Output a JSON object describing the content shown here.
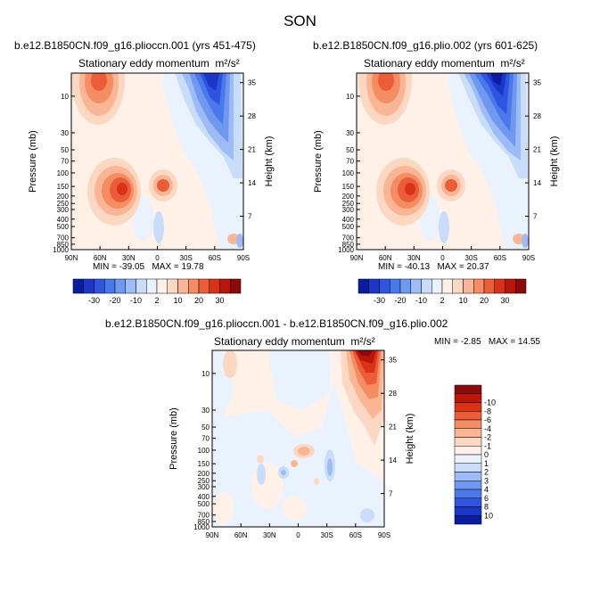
{
  "figure": {
    "season": "SON"
  },
  "colorbar_shared": {
    "colors": [
      "#0a1da0",
      "#1a37c8",
      "#2f55e0",
      "#4b78ea",
      "#6f98f0",
      "#9dbcf5",
      "#c9ddfa",
      "#eaf2fd",
      "#fff1e8",
      "#fcd8c3",
      "#fab694",
      "#f48d62",
      "#ea5d38",
      "#d83317",
      "#bb1609",
      "#8c0a0a"
    ],
    "labels": [
      "-30",
      "-20",
      "-10",
      "2",
      "10",
      "20",
      "30"
    ]
  },
  "colorbar_diff": {
    "colors": [
      "#0a1da0",
      "#1a37c8",
      "#2f55e0",
      "#4b78ea",
      "#6f98f0",
      "#9dbcf5",
      "#c9ddfa",
      "#eaf2fd",
      "#fff1e8",
      "#fcd8c3",
      "#fab694",
      "#f48d62",
      "#ea5d38",
      "#d83317",
      "#bb1609",
      "#8c0a0a"
    ],
    "labels": [
      "-10",
      "-8",
      "-6",
      "-4",
      "-2",
      "-1",
      "0",
      "1",
      "2",
      "3",
      "4",
      "6",
      "8",
      "10"
    ]
  },
  "chart_data": [
    {
      "type": "heatmap",
      "title": "b.e12.B1850CN.f09_g16.plioccn.001 (yrs 451-475)",
      "subtitle": "Stationary eddy momentum",
      "units": "m²/s²",
      "xlabel": "",
      "ylabel": "Pressure (mb)",
      "y2label": "Height (km)",
      "x_ticks": [
        "90N",
        "60N",
        "30N",
        "0",
        "30S",
        "60S",
        "90S"
      ],
      "y_ticks": [
        "10",
        "30",
        "50",
        "70",
        "100",
        "150",
        "200",
        "250",
        "300",
        "400",
        "500",
        "700",
        "850",
        "1000"
      ],
      "y2_ticks": [
        "35",
        "28",
        "21",
        "14",
        "7"
      ],
      "min_label": "MIN = -39.05",
      "max_label": "MAX = 19.78",
      "min": -39.05,
      "max": 19.78
    },
    {
      "type": "heatmap",
      "title": "b.e12.B1850CN.f09_g16.plio.002 (yrs 601-625)",
      "subtitle": "Stationary eddy momentum",
      "units": "m²/s²",
      "xlabel": "",
      "ylabel": "Pressure (mb)",
      "y2label": "Height (km)",
      "x_ticks": [
        "90N",
        "60N",
        "30N",
        "0",
        "30S",
        "60S",
        "90S"
      ],
      "y_ticks": [
        "10",
        "30",
        "50",
        "70",
        "100",
        "150",
        "200",
        "250",
        "300",
        "400",
        "500",
        "700",
        "850",
        "1000"
      ],
      "y2_ticks": [
        "35",
        "28",
        "21",
        "14",
        "7"
      ],
      "min_label": "MIN = -40.13",
      "max_label": "MAX = 20.37",
      "min": -40.13,
      "max": 20.37
    },
    {
      "type": "heatmap",
      "title": "b.e12.B1850CN.f09_g16.plioccn.001 - b.e12.B1850CN.f09_g16.plio.002",
      "subtitle": "Stationary eddy momentum",
      "units": "m²/s²",
      "xlabel": "",
      "ylabel": "Pressure (mb)",
      "y2label": "Height (km)",
      "x_ticks": [
        "90N",
        "60N",
        "30N",
        "0",
        "30S",
        "60S",
        "90S"
      ],
      "y_ticks": [
        "10",
        "30",
        "50",
        "70",
        "100",
        "150",
        "200",
        "250",
        "300",
        "400",
        "500",
        "700",
        "850",
        "1000"
      ],
      "y2_ticks": [
        "35",
        "28",
        "21",
        "14",
        "7"
      ],
      "min_label": "MIN = -2.85",
      "max_label": "MAX = 14.55",
      "min": -2.85,
      "max": 14.55
    }
  ]
}
